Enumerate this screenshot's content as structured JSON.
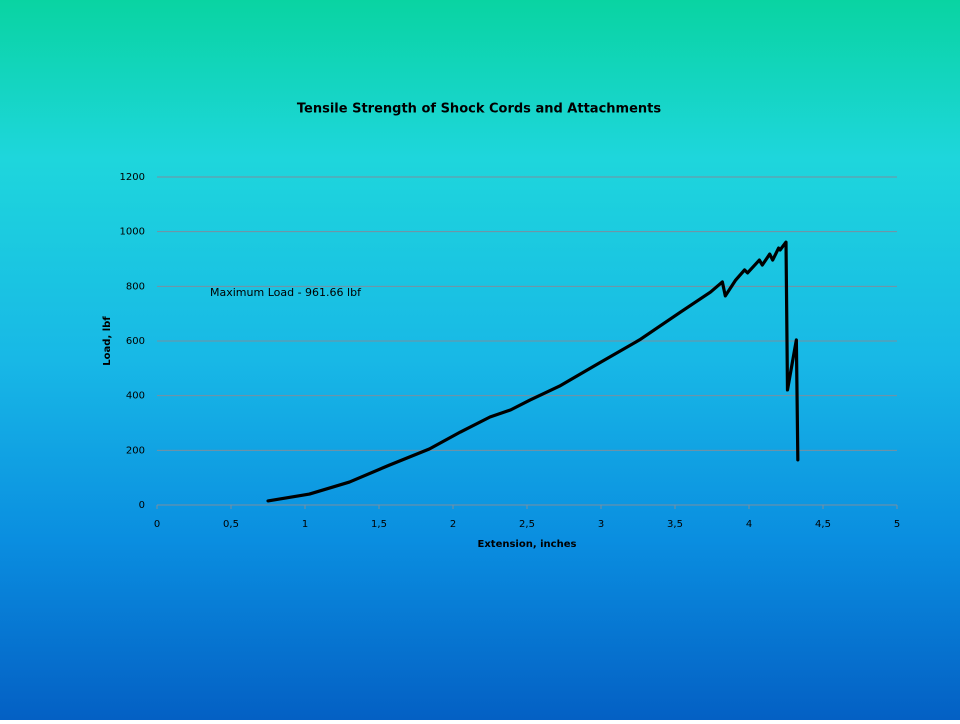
{
  "chart_data": {
    "type": "line",
    "title": "Tensile Strength of Shock Cords and Attachments",
    "x_label": "Extension, inches",
    "y_label": "Load, lbf",
    "annotation": "Maximum Load - 961.66  lbf",
    "color": "#000000",
    "grid": true,
    "x": [
      0.75,
      1.03,
      1.3,
      1.57,
      1.84,
      2.05,
      2.25,
      2.39,
      2.52,
      2.72,
      2.99,
      3.26,
      3.53,
      3.74,
      3.82,
      3.84,
      3.91,
      3.97,
      3.99,
      4.07,
      4.09,
      4.14,
      4.16,
      4.2,
      4.21,
      4.25,
      4.26,
      4.32,
      4.33
    ],
    "values": [
      15,
      40,
      84,
      146,
      205,
      267,
      322,
      348,
      384,
      435,
      520,
      604,
      703,
      779,
      816,
      765,
      823,
      860,
      849,
      896,
      878,
      918,
      896,
      940,
      933,
      961.66,
      421,
      604,
      165
    ],
    "xlim": [
      0,
      5
    ],
    "xticks": [
      0,
      {
        "value": 0.5,
        "label": "0,5"
      },
      1,
      {
        "value": 1.5,
        "label": "1,5"
      },
      2,
      {
        "value": 2.5,
        "label": "2,5"
      },
      3,
      {
        "value": 3.5,
        "label": "3,5"
      },
      4,
      {
        "value": 4.5,
        "label": "4,5"
      },
      5
    ],
    "ylim": [
      0,
      1200
    ],
    "yticks": [
      0,
      200,
      400,
      600,
      800,
      1000,
      1200
    ]
  }
}
